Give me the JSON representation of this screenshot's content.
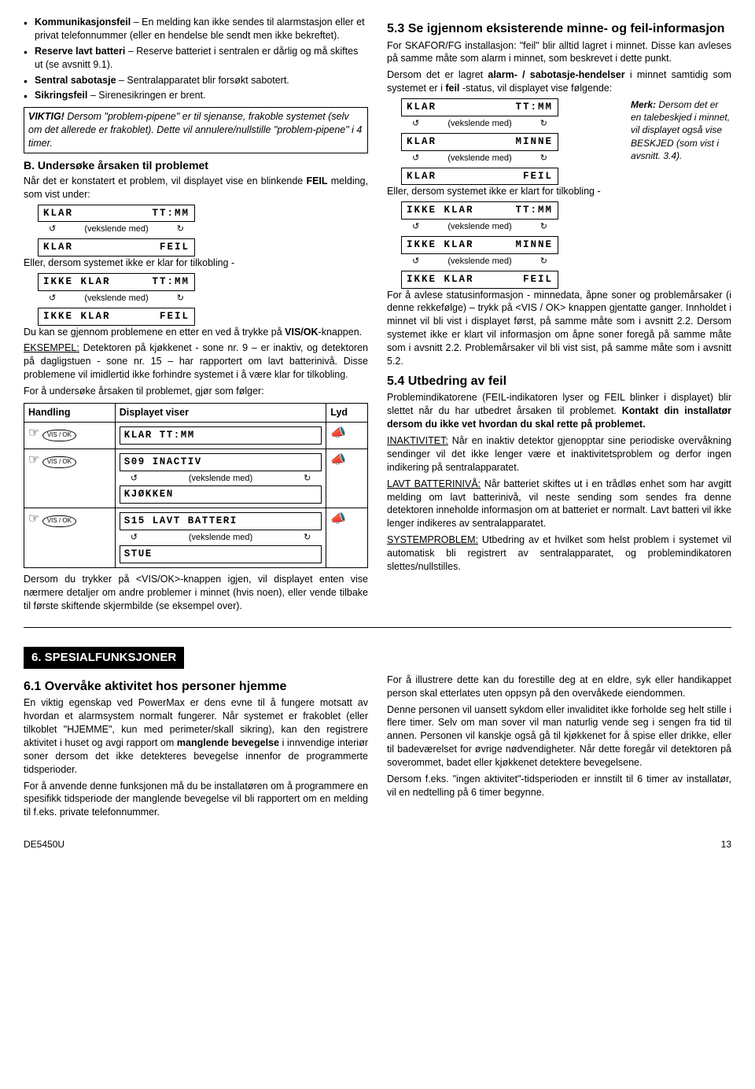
{
  "left": {
    "bullets": [
      {
        "term": "Kommunikasjonsfeil",
        "rest": " – En melding kan ikke sendes til alarmstasjon eller et privat telefonnummer (eller en hendelse ble sendt men ikke bekreftet)."
      },
      {
        "term": "Reserve lavt batteri",
        "rest": " – Reserve batteriet i sentralen er dårlig og må skiftes ut (se avsnitt 9.1)."
      },
      {
        "term": "Sentral sabotasje",
        "rest": " – Sentralapparatet blir forsøkt sabotert."
      },
      {
        "term": "Sikringsfeil",
        "rest": " – Sirenesikringen er brent."
      }
    ],
    "viktig_label": "VIKTIG!",
    "viktig_text": " Dersom \"problem-pipene\" er til sjenanse, frakoble systemet (selv om det allerede er frakoblet). Dette vil annulere/nullstille \"problem-pipene\" i 4 timer.",
    "b_head": "B. Undersøke årsaken til problemet",
    "b_intro_1": "Når det er konstatert et problem, vil displayet vise en blinkende ",
    "b_intro_2": " melding, som vist under:",
    "feil": "FEIL",
    "lcd1": {
      "l": "KLAR",
      "r": "TT:MM"
    },
    "veks": "(vekslende med)",
    "lcd2": {
      "l": "KLAR",
      "r": "FEIL"
    },
    "eller": "Eller, dersom systemet ikke er klar for tilkobling -",
    "lcd3": {
      "l": "IKKE KLAR",
      "r": "TT:MM"
    },
    "lcd4": {
      "l": "IKKE KLAR",
      "r": "FEIL"
    },
    "p1a": "Du kan se gjennom problemene en etter en ved å trykke på ",
    "visok": "VIS/OK",
    "p1b": "-knappen.",
    "eks_u": "EKSEMPEL:",
    "eks_t": " Detektoren på kjøkkenet - sone nr. 9 – er inaktiv, og detektoren på dagligstuen - sone nr. 15 – har rapportert om lavt batterinivå. Disse problemene vil imidlertid ikke forhindre systemet i å være klar for tilkobling.",
    "p2": "For å undersøke årsaken til problemet, gjør som følger:",
    "tbl": {
      "h1": "Handling",
      "h2": "Displayet viser",
      "h3": "Lyd",
      "r1": {
        "d": "KLAR       TT:MM"
      },
      "r2": {
        "d1": "S09 INACTIV",
        "d2": "KJØKKEN"
      },
      "r3": {
        "d1": "S15 LAVT BATTERI",
        "d2": "STUE"
      }
    },
    "vok": "VIS / OK",
    "p3": "Dersom du trykker på <VIS/OK>-knappen igjen, vil displayet enten vise nærmere detaljer om andre problemer i minnet (hvis noen), eller vende tilbake til første skiftende skjermbilde (se eksempel over)."
  },
  "right": {
    "h53": "5.3 Se igjennom eksisterende minne- og feil-informasjon",
    "p1": "For SKAFOR/FG installasjon: \"feil\" blir alltid lagret i minnet. Disse kan avleses på samme måte som alarm i minnet, som beskrevet i dette punkt.",
    "p2a": "Dersom det er lagret ",
    "p2b": "alarm- / sabotasje-hendelser",
    "p2c": " i minnet samtidig som systemet er i ",
    "p2d": "feil",
    "p2e": " -status, vil displayet vise følgende:",
    "merk_l": "Merk:",
    "merk_t": " Dersom det er en talebeskjed i minnet, vil displayet også vise BESKJED (som vist i avsnitt. 3.4).",
    "lcd1": {
      "l": "KLAR",
      "r": "TT:MM"
    },
    "veks": "(vekslende med)",
    "lcd2": {
      "l": "KLAR",
      "r": "MINNE"
    },
    "lcd3": {
      "l": "KLAR",
      "r": "FEIL"
    },
    "eller": "Eller, dersom systemet ikke er klart for tilkobling -",
    "lcd4": {
      "l": "IKKE KLAR",
      "r": "TT:MM"
    },
    "lcd5": {
      "l": "IKKE KLAR",
      "r": "MINNE"
    },
    "lcd6": {
      "l": "IKKE KLAR",
      "r": "FEIL"
    },
    "p3": "For å avlese statusinformasjon - minnedata, åpne soner og problemårsaker (i denne rekkefølge) – trykk på <VIS / OK> knappen gjentatte ganger. Innholdet i minnet vil bli vist i displayet først, på samme måte som i avsnitt 2.2. Dersom systemet ikke er klart vil informasjon om åpne soner foregå på samme måte som i avsnitt 2.2. Problemårsaker vil bli vist sist, på samme måte som i avsnitt 5.2.",
    "h54": "5.4 Utbedring av feil",
    "p4a": "Problemindikatorene (FEIL-indikatoren lyser og FEIL blinker i displayet) blir slettet når du har utbedret årsaken til problemet. ",
    "p4b": "Kontakt din installatør dersom du ikke vet hvordan du skal rette på problemet.",
    "inakt_u": "INAKTIVITET:",
    "inakt_t": " Når en inaktiv detektor gjenopptar sine periodiske overvåkning sendinger vil det ikke lenger være et inaktivitetsproblem og derfor ingen indikering på sentralapparatet.",
    "lavt_u": "LAVT BATTERINIVÅ:",
    "lavt_t": " Når batteriet skiftes ut i en trådløs enhet som har avgitt melding om lavt batterinivå, vil neste sending som sendes fra denne detektoren inneholde informasjon om at batteriet er normalt. Lavt batteri vil ikke lenger indikeres av sentralapparatet.",
    "sys_u": "SYSTEMPROBLEM:",
    "sys_t": " Utbedring av et hvilket som helst problem i systemet vil automatisk bli registrert av sentralapparatet, og problemindikatoren slettes/nullstilles."
  },
  "sec6": {
    "banner": "6. SPESIALFUNKSJONER",
    "h61": "6.1 Overvåke aktivitet hos personer hjemme",
    "l1": "En viktig egenskap ved PowerMax er dens evne til å fungere motsatt av hvordan et alarmsystem normalt fungerer. Når systemet er frakoblet (eller tilkoblet \"HJEMME\", kun med perimeter/skall sikring), kan den registrere aktivitet i huset og avgi rapport om ",
    "l1b": "manglende bevegelse",
    "l1c": " i innvendige interiør soner dersom det ikke detekteres bevegelse innenfor de programmerte tidsperioder.",
    "l2": "For å anvende denne funksjonen må du be installatøren om å programmere en spesifikk tidsperiode der manglende bevegelse vil bli rapportert om en melding til f.eks. private telefonnummer.",
    "r1": "For å illustrere dette kan du forestille deg at en eldre, syk eller handikappet person skal etterlates uten oppsyn på den overvåkede eiendommen.",
    "r2": "Denne personen vil uansett sykdom eller invaliditet ikke forholde seg helt stille i flere timer. Selv om man sover vil man naturlig vende seg i sengen fra tid til annen. Personen vil kanskje også gå til kjøkkenet for å spise eller drikke, eller til badeværelset for øvrige nødvendigheter. Når dette foregår vil detektoren på soverommet, badet eller kjøkkenet detektere bevegelsene.",
    "r3": "Dersom f.eks. \"ingen aktivitet\"-tidsperioden er innstilt til 6 timer av installatør, vil en nedtelling på 6 timer begynne."
  },
  "footer": {
    "l": "DE5450U",
    "r": "13"
  }
}
